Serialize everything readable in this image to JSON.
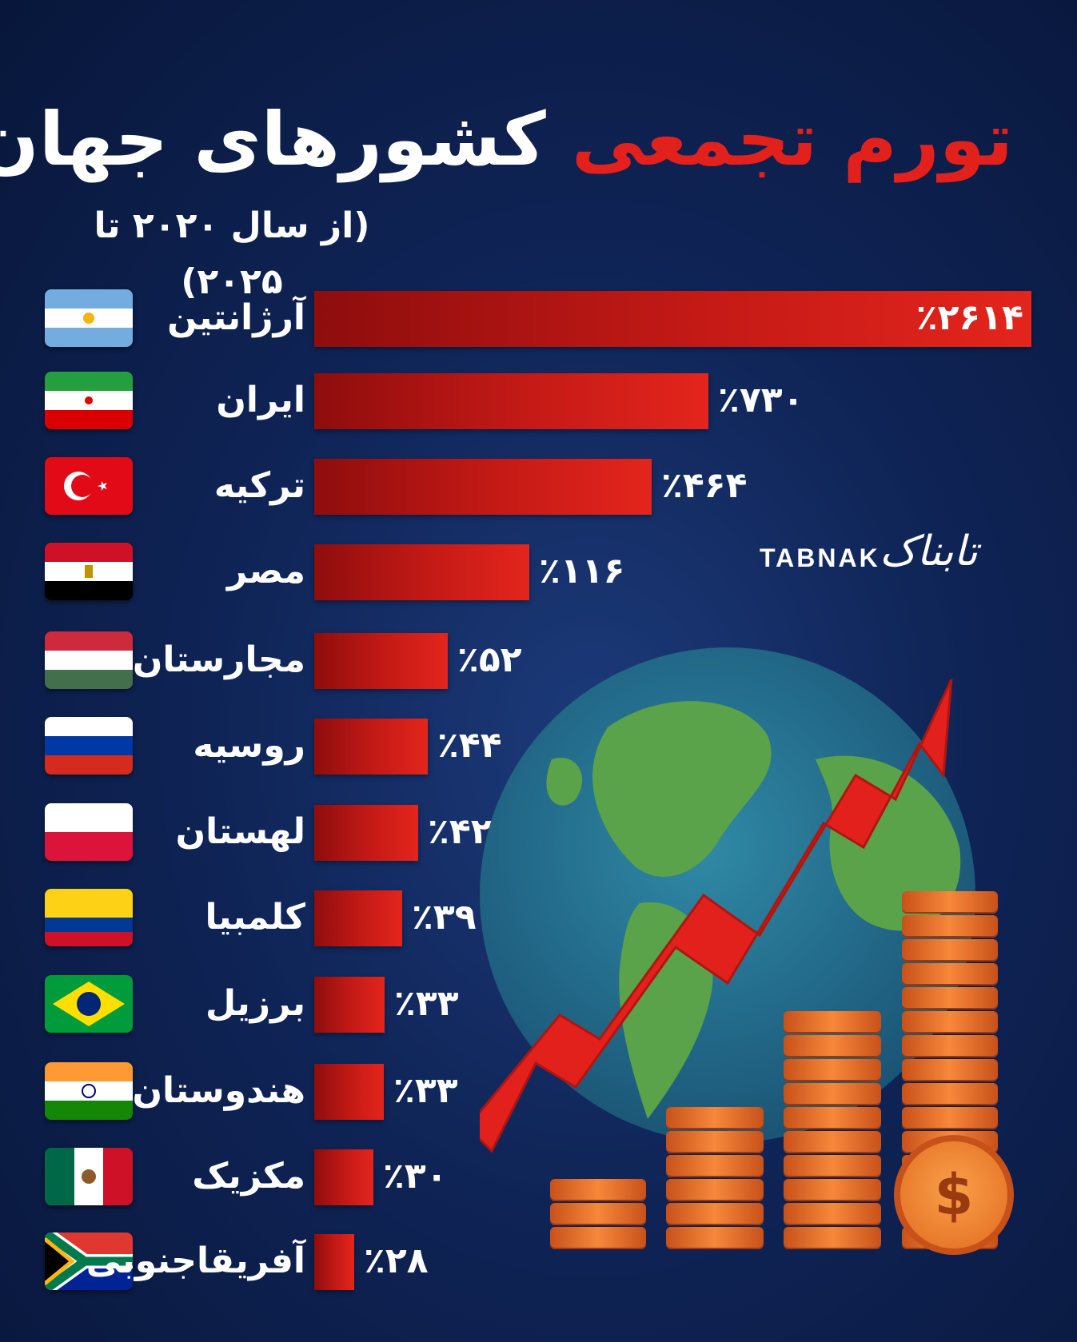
{
  "title": {
    "red_part": "تورم تجمعی",
    "white_part": "کشورهای جهان"
  },
  "subtitle": "(از سال ۲۰۲۰ تا ۲۰۲۵)",
  "logo": {
    "latin": "TABNAK",
    "persian": "تابناک"
  },
  "colors": {
    "bar": "#c51a16",
    "title_red": "#e3211c",
    "background": "#0f2456"
  },
  "chart_data": {
    "type": "bar",
    "orientation": "horizontal",
    "unit": "%",
    "categories": [
      "آرژانتین",
      "ایران",
      "ترکیه",
      "مصر",
      "مجارستان",
      "روسیه",
      "لهستان",
      "کلمبیا",
      "برزیل",
      "هندوستان",
      "مکزیک",
      "آفریقاجنوبی"
    ],
    "values": [
      2614,
      730,
      464,
      116,
      52,
      44,
      42,
      39,
      33,
      33,
      30,
      28
    ],
    "labels": [
      "٪۲۶۱۴",
      "٪۷۳۰",
      "٪۴۶۴",
      "٪۱۱۶",
      "٪۵۲",
      "٪۴۴",
      "٪۴۲",
      "٪۳۹",
      "٪۳۳",
      "٪۳۳",
      "٪۳۰",
      "٪۲۸"
    ],
    "flags": [
      "argentina-flag",
      "iran-flag",
      "turkey-flag",
      "egypt-flag",
      "hungary-flag",
      "russia-flag",
      "poland-flag",
      "colombia-flag",
      "brazil-flag",
      "india-flag",
      "mexico-flag",
      "south-africa-flag"
    ],
    "bar_fraction": [
      1.0,
      0.55,
      0.47,
      0.3,
      0.186,
      0.158,
      0.145,
      0.123,
      0.098,
      0.097,
      0.083,
      0.056
    ]
  }
}
